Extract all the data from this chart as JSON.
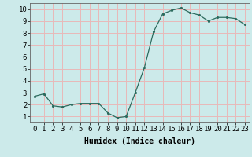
{
  "x": [
    0,
    1,
    2,
    3,
    4,
    5,
    6,
    7,
    8,
    9,
    10,
    11,
    12,
    13,
    14,
    15,
    16,
    17,
    18,
    19,
    20,
    21,
    22,
    23
  ],
  "y": [
    2.7,
    2.9,
    1.9,
    1.8,
    2.0,
    2.1,
    2.1,
    2.1,
    1.3,
    0.9,
    1.0,
    3.0,
    5.1,
    8.1,
    9.6,
    9.9,
    10.1,
    9.7,
    9.5,
    9.0,
    9.3,
    9.3,
    9.2,
    8.7
  ],
  "xlabel": "Humidex (Indice chaleur)",
  "ylim": [
    0.5,
    10.5
  ],
  "xlim": [
    -0.5,
    23.5
  ],
  "yticks": [
    1,
    2,
    3,
    4,
    5,
    6,
    7,
    8,
    9,
    10
  ],
  "xticks": [
    0,
    1,
    2,
    3,
    4,
    5,
    6,
    7,
    8,
    9,
    10,
    11,
    12,
    13,
    14,
    15,
    16,
    17,
    18,
    19,
    20,
    21,
    22,
    23
  ],
  "line_color": "#2d6b5e",
  "marker_color": "#2d6b5e",
  "bg_color": "#cceaea",
  "grid_color": "#e8b8b8",
  "xlabel_fontsize": 7,
  "tick_fontsize": 6.5
}
